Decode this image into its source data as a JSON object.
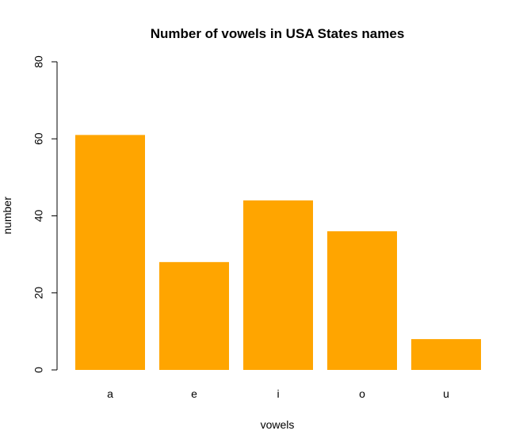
{
  "chart_data": {
    "type": "bar",
    "title": "Number of vowels in USA States names",
    "xlabel": "vowels",
    "ylabel": "number",
    "categories": [
      "a",
      "e",
      "i",
      "o",
      "u"
    ],
    "values": [
      61,
      28,
      44,
      36,
      8
    ],
    "ylim": [
      0,
      80
    ],
    "yticks": [
      0,
      20,
      40,
      60,
      80
    ],
    "bar_color": "#FFA500",
    "grid": false,
    "legend": "none"
  }
}
